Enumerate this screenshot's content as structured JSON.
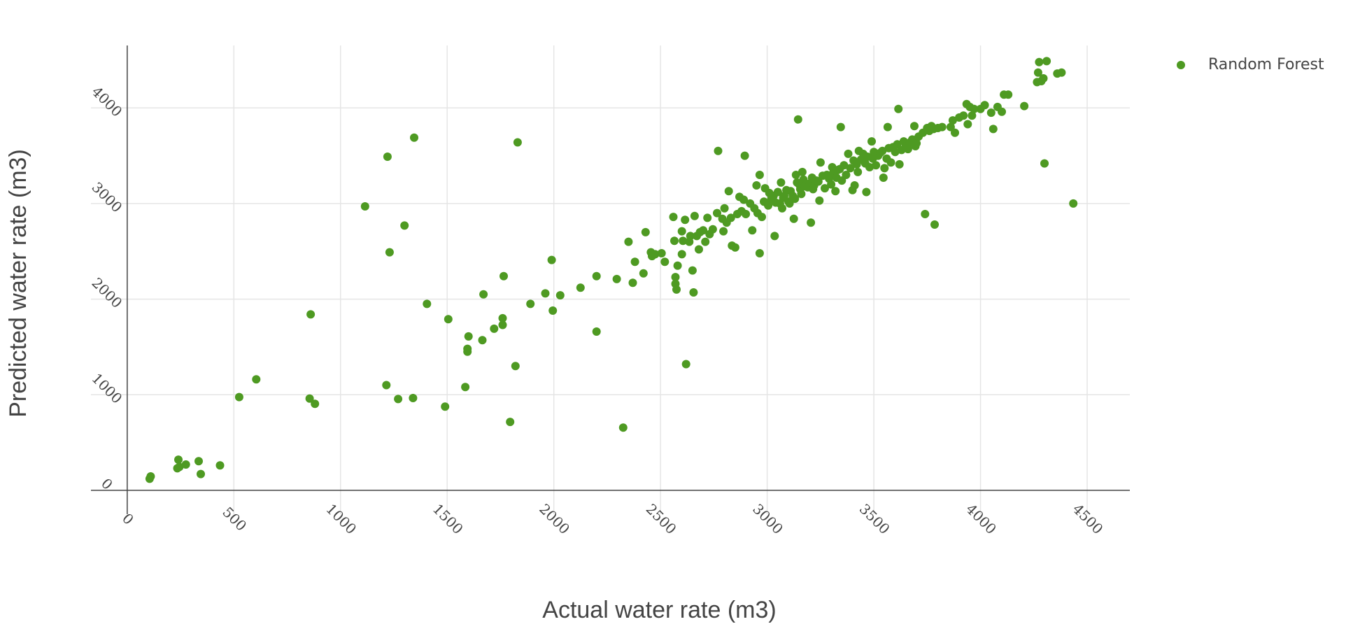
{
  "chart_data": {
    "type": "scatter",
    "xlabel": "Actual water rate (m3)",
    "ylabel": "Predicted water rate (m3)",
    "xlim": [
      -170,
      4700
    ],
    "ylim": [
      -250,
      4800
    ],
    "x_ticks": [
      0,
      500,
      1000,
      1500,
      2000,
      2500,
      3000,
      3500,
      4000,
      4500
    ],
    "y_ticks": [
      0,
      1000,
      2000,
      3000,
      4000
    ],
    "grid": true,
    "legend_position": "top-right",
    "marker_color": "#4e9a22",
    "series": [
      {
        "name": "Random Forest",
        "points": [
          [
            105,
            120
          ],
          [
            110,
            145
          ],
          [
            235,
            230
          ],
          [
            240,
            320
          ],
          [
            245,
            245
          ],
          [
            275,
            270
          ],
          [
            335,
            305
          ],
          [
            345,
            170
          ],
          [
            435,
            260
          ],
          [
            525,
            975
          ],
          [
            605,
            1160
          ],
          [
            855,
            960
          ],
          [
            860,
            1840
          ],
          [
            880,
            905
          ],
          [
            1115,
            2970
          ],
          [
            1215,
            1100
          ],
          [
            1220,
            3490
          ],
          [
            1230,
            2490
          ],
          [
            1270,
            955
          ],
          [
            1300,
            2770
          ],
          [
            1340,
            965
          ],
          [
            1345,
            3690
          ],
          [
            1405,
            1950
          ],
          [
            1490,
            875
          ],
          [
            1505,
            1790
          ],
          [
            1585,
            1080
          ],
          [
            1595,
            1450
          ],
          [
            1595,
            1480
          ],
          [
            1600,
            1610
          ],
          [
            1665,
            1570
          ],
          [
            1670,
            2050
          ],
          [
            1720,
            1690
          ],
          [
            1760,
            1800
          ],
          [
            1760,
            1730
          ],
          [
            1765,
            2240
          ],
          [
            1795,
            715
          ],
          [
            1820,
            1300
          ],
          [
            1830,
            3640
          ],
          [
            1890,
            1950
          ],
          [
            1960,
            2060
          ],
          [
            1990,
            2410
          ],
          [
            1995,
            1880
          ],
          [
            2030,
            2040
          ],
          [
            2125,
            2120
          ],
          [
            2200,
            1660
          ],
          [
            2200,
            2240
          ],
          [
            2295,
            2210
          ],
          [
            2325,
            655
          ],
          [
            2350,
            2600
          ],
          [
            2370,
            2170
          ],
          [
            2380,
            2390
          ],
          [
            2420,
            2270
          ],
          [
            2430,
            2700
          ],
          [
            2455,
            2490
          ],
          [
            2460,
            2450
          ],
          [
            2475,
            2470
          ],
          [
            2505,
            2480
          ],
          [
            2520,
            2390
          ],
          [
            2560,
            2860
          ],
          [
            2565,
            2610
          ],
          [
            2570,
            2160
          ],
          [
            2570,
            2230
          ],
          [
            2575,
            2100
          ],
          [
            2580,
            2350
          ],
          [
            2600,
            2470
          ],
          [
            2600,
            2710
          ],
          [
            2605,
            2610
          ],
          [
            2615,
            2830
          ],
          [
            2620,
            1320
          ],
          [
            2635,
            2600
          ],
          [
            2640,
            2660
          ],
          [
            2650,
            2300
          ],
          [
            2655,
            2070
          ],
          [
            2660,
            2870
          ],
          [
            2670,
            2660
          ],
          [
            2680,
            2520
          ],
          [
            2685,
            2700
          ],
          [
            2700,
            2720
          ],
          [
            2710,
            2600
          ],
          [
            2720,
            2850
          ],
          [
            2730,
            2680
          ],
          [
            2745,
            2730
          ],
          [
            2765,
            2900
          ],
          [
            2770,
            3550
          ],
          [
            2790,
            2840
          ],
          [
            2795,
            2710
          ],
          [
            2800,
            2950
          ],
          [
            2810,
            2800
          ],
          [
            2820,
            3130
          ],
          [
            2830,
            2850
          ],
          [
            2835,
            2560
          ],
          [
            2850,
            2540
          ],
          [
            2860,
            2890
          ],
          [
            2870,
            3070
          ],
          [
            2880,
            2920
          ],
          [
            2890,
            3040
          ],
          [
            2895,
            3500
          ],
          [
            2900,
            2890
          ],
          [
            2920,
            3000
          ],
          [
            2930,
            2720
          ],
          [
            2940,
            2950
          ],
          [
            2950,
            3190
          ],
          [
            2955,
            2900
          ],
          [
            2965,
            2480
          ],
          [
            2965,
            3300
          ],
          [
            2975,
            2860
          ],
          [
            2985,
            3020
          ],
          [
            2990,
            3160
          ],
          [
            3000,
            3000
          ],
          [
            3005,
            2980
          ],
          [
            3010,
            3110
          ],
          [
            3020,
            3050
          ],
          [
            3030,
            3080
          ],
          [
            3035,
            2660
          ],
          [
            3040,
            3010
          ],
          [
            3050,
            3120
          ],
          [
            3060,
            3000
          ],
          [
            3065,
            3220
          ],
          [
            3070,
            2950
          ],
          [
            3075,
            3060
          ],
          [
            3080,
            3080
          ],
          [
            3090,
            3140
          ],
          [
            3100,
            3020
          ],
          [
            3105,
            3000
          ],
          [
            3110,
            3130
          ],
          [
            3120,
            3080
          ],
          [
            3125,
            2840
          ],
          [
            3130,
            3050
          ],
          [
            3135,
            3300
          ],
          [
            3140,
            3220
          ],
          [
            3145,
            3880
          ],
          [
            3150,
            3200
          ],
          [
            3155,
            3150
          ],
          [
            3160,
            3100
          ],
          [
            3165,
            3330
          ],
          [
            3170,
            3250
          ],
          [
            3175,
            3180
          ],
          [
            3185,
            3200
          ],
          [
            3190,
            3170
          ],
          [
            3200,
            3210
          ],
          [
            3205,
            2800
          ],
          [
            3210,
            3270
          ],
          [
            3215,
            3150
          ],
          [
            3220,
            3190
          ],
          [
            3230,
            3240
          ],
          [
            3240,
            3230
          ],
          [
            3245,
            3030
          ],
          [
            3250,
            3430
          ],
          [
            3260,
            3290
          ],
          [
            3270,
            3160
          ],
          [
            3280,
            3300
          ],
          [
            3290,
            3260
          ],
          [
            3300,
            3200
          ],
          [
            3305,
            3380
          ],
          [
            3310,
            3320
          ],
          [
            3320,
            3130
          ],
          [
            3325,
            3270
          ],
          [
            3330,
            3350
          ],
          [
            3340,
            3360
          ],
          [
            3345,
            3800
          ],
          [
            3350,
            3240
          ],
          [
            3360,
            3400
          ],
          [
            3370,
            3300
          ],
          [
            3380,
            3520
          ],
          [
            3390,
            3370
          ],
          [
            3400,
            3140
          ],
          [
            3405,
            3450
          ],
          [
            3410,
            3190
          ],
          [
            3420,
            3410
          ],
          [
            3425,
            3330
          ],
          [
            3430,
            3550
          ],
          [
            3440,
            3460
          ],
          [
            3450,
            3520
          ],
          [
            3460,
            3420
          ],
          [
            3465,
            3120
          ],
          [
            3470,
            3490
          ],
          [
            3480,
            3380
          ],
          [
            3490,
            3650
          ],
          [
            3495,
            3470
          ],
          [
            3500,
            3540
          ],
          [
            3510,
            3400
          ],
          [
            3520,
            3500
          ],
          [
            3530,
            3530
          ],
          [
            3540,
            3550
          ],
          [
            3545,
            3270
          ],
          [
            3550,
            3370
          ],
          [
            3560,
            3470
          ],
          [
            3565,
            3800
          ],
          [
            3570,
            3580
          ],
          [
            3580,
            3430
          ],
          [
            3590,
            3590
          ],
          [
            3600,
            3540
          ],
          [
            3610,
            3620
          ],
          [
            3615,
            3990
          ],
          [
            3620,
            3410
          ],
          [
            3630,
            3560
          ],
          [
            3640,
            3650
          ],
          [
            3650,
            3600
          ],
          [
            3660,
            3570
          ],
          [
            3670,
            3640
          ],
          [
            3680,
            3670
          ],
          [
            3690,
            3810
          ],
          [
            3695,
            3600
          ],
          [
            3700,
            3630
          ],
          [
            3710,
            3700
          ],
          [
            3730,
            3740
          ],
          [
            3740,
            2890
          ],
          [
            3750,
            3790
          ],
          [
            3760,
            3760
          ],
          [
            3770,
            3810
          ],
          [
            3780,
            3780
          ],
          [
            3785,
            2780
          ],
          [
            3800,
            3790
          ],
          [
            3820,
            3800
          ],
          [
            3860,
            3800
          ],
          [
            3870,
            3870
          ],
          [
            3880,
            3740
          ],
          [
            3900,
            3900
          ],
          [
            3920,
            3920
          ],
          [
            3935,
            4040
          ],
          [
            3940,
            3830
          ],
          [
            3950,
            4010
          ],
          [
            3960,
            3920
          ],
          [
            3970,
            3990
          ],
          [
            4000,
            3990
          ],
          [
            4020,
            4030
          ],
          [
            4050,
            3950
          ],
          [
            4060,
            3780
          ],
          [
            4080,
            4010
          ],
          [
            4100,
            3960
          ],
          [
            4110,
            4140
          ],
          [
            4130,
            4140
          ],
          [
            4205,
            4020
          ],
          [
            4265,
            4270
          ],
          [
            4270,
            4370
          ],
          [
            4275,
            4480
          ],
          [
            4285,
            4280
          ],
          [
            4295,
            4310
          ],
          [
            4300,
            3420
          ],
          [
            4310,
            4490
          ],
          [
            4360,
            4360
          ],
          [
            4380,
            4370
          ],
          [
            4435,
            3000
          ]
        ]
      }
    ]
  }
}
